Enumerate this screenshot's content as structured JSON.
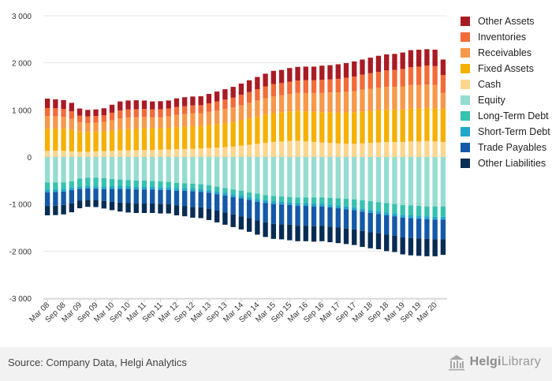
{
  "chart_data": {
    "type": "stacked-bar",
    "ylim": [
      -3000,
      3000
    ],
    "yticks": [
      3000,
      2000,
      1000,
      0,
      -1000,
      -2000,
      -3000
    ],
    "ytick_labels": [
      "3 000",
      "2 000",
      "1 000",
      "0",
      "-1 000",
      "-2 000",
      "-3 000"
    ],
    "x_labels": [
      "Mar 08",
      "Sep 08",
      "Mar 09",
      "Sep 09",
      "Mar 10",
      "Sep 10",
      "Mar 11",
      "Sep 11",
      "Mar 12",
      "Sep 12",
      "Mar 13",
      "Sep 13",
      "Mar 14",
      "Sep 14",
      "Mar 15",
      "Sep 15",
      "Mar 16",
      "Sep 16",
      "Mar 17",
      "Sep 17",
      "Mar 18",
      "Sep 18",
      "Mar 19",
      "Sep 19",
      "Mar 20"
    ],
    "periods": [
      "Mar 08",
      "Jun 08",
      "Sep 08",
      "Dec 08",
      "Mar 09",
      "Jun 09",
      "Sep 09",
      "Dec 09",
      "Mar 10",
      "Jun 10",
      "Sep 10",
      "Dec 10",
      "Mar 11",
      "Jun 11",
      "Sep 11",
      "Dec 11",
      "Mar 12",
      "Jun 12",
      "Sep 12",
      "Dec 12",
      "Mar 13",
      "Jun 13",
      "Sep 13",
      "Dec 13",
      "Mar 14",
      "Jun 14",
      "Sep 14",
      "Dec 14",
      "Mar 15",
      "Jun 15",
      "Sep 15",
      "Dec 15",
      "Mar 16",
      "Jun 16",
      "Sep 16",
      "Dec 16",
      "Mar 17",
      "Jun 17",
      "Sep 17",
      "Dec 17",
      "Mar 18",
      "Jun 18",
      "Sep 18",
      "Dec 18",
      "Mar 19",
      "Jun 19",
      "Sep 19",
      "Dec 19",
      "Mar 20",
      "Jun 20"
    ],
    "asset_series": [
      {
        "name": "Cash",
        "color": "#fdd68e",
        "values": [
          130,
          135,
          130,
          120,
          110,
          110,
          120,
          125,
          130,
          140,
          140,
          145,
          150,
          150,
          155,
          160,
          165,
          170,
          175,
          180,
          190,
          200,
          210,
          220,
          240,
          260,
          280,
          300,
          320,
          330,
          340,
          345,
          330,
          320,
          310,
          300,
          290,
          285,
          280,
          290,
          300,
          310,
          320,
          320,
          320,
          330,
          330,
          340,
          330,
          320
        ]
      },
      {
        "name": "Fixed Assets",
        "color": "#f5b000",
        "values": [
          470,
          470,
          470,
          460,
          430,
          420,
          420,
          420,
          430,
          440,
          450,
          450,
          460,
          460,
          460,
          460,
          470,
          470,
          480,
          480,
          490,
          500,
          510,
          520,
          540,
          560,
          580,
          600,
          610,
          620,
          630,
          640,
          640,
          640,
          640,
          650,
          650,
          660,
          670,
          680,
          680,
          690,
          690,
          690,
          690,
          700,
          700,
          700,
          700,
          700
        ]
      },
      {
        "name": "Receivables",
        "color": "#f7994a",
        "values": [
          270,
          260,
          250,
          230,
          200,
          190,
          190,
          200,
          220,
          240,
          250,
          250,
          240,
          230,
          230,
          240,
          260,
          270,
          270,
          270,
          280,
          290,
          300,
          310,
          320,
          330,
          340,
          350,
          360,
          360,
          370,
          380,
          390,
          400,
          410,
          420,
          430,
          440,
          450,
          460,
          470,
          470,
          480,
          480,
          490,
          500,
          500,
          500,
          500,
          340
        ]
      },
      {
        "name": "Inventories",
        "color": "#f26b38",
        "values": [
          170,
          170,
          170,
          160,
          140,
          140,
          140,
          140,
          160,
          170,
          170,
          170,
          170,
          170,
          170,
          170,
          170,
          170,
          170,
          170,
          180,
          190,
          200,
          210,
          220,
          230,
          240,
          250,
          260,
          260,
          260,
          260,
          270,
          270,
          280,
          280,
          290,
          300,
          310,
          320,
          330,
          340,
          350,
          360,
          370,
          380,
          390,
          400,
          400,
          380
        ]
      },
      {
        "name": "Other Assets",
        "color": "#a91b24",
        "values": [
          200,
          190,
          190,
          180,
          150,
          140,
          140,
          150,
          170,
          190,
          190,
          190,
          180,
          170,
          170,
          170,
          180,
          190,
          190,
          190,
          200,
          210,
          220,
          230,
          240,
          250,
          260,
          270,
          280,
          280,
          290,
          290,
          290,
          290,
          300,
          300,
          310,
          310,
          320,
          320,
          330,
          340,
          340,
          340,
          350,
          360,
          360,
          350,
          350,
          330
        ]
      }
    ],
    "liability_series": [
      {
        "name": "Equity",
        "color": "#96dcd1",
        "values": [
          -540,
          -540,
          -540,
          -520,
          -460,
          -440,
          -440,
          -450,
          -470,
          -480,
          -490,
          -500,
          -500,
          -510,
          -520,
          -530,
          -550,
          -560,
          -570,
          -580,
          -600,
          -630,
          -660,
          -690,
          -720,
          -750,
          -780,
          -810,
          -830,
          -840,
          -850,
          -860,
          -860,
          -860,
          -860,
          -870,
          -880,
          -890,
          -900,
          -920,
          -940,
          -960,
          -980,
          -1000,
          -1020,
          -1030,
          -1040,
          -1050,
          -1050,
          -1050
        ]
      },
      {
        "name": "Long-Term Debt",
        "color": "#37c2b0",
        "values": [
          -150,
          -145,
          -140,
          -130,
          -170,
          -180,
          -185,
          -180,
          -150,
          -140,
          -130,
          -130,
          -130,
          -120,
          -120,
          -110,
          -110,
          -100,
          -100,
          -100,
          -100,
          -100,
          -100,
          -100,
          -100,
          -100,
          -110,
          -110,
          -110,
          -110,
          -110,
          -120,
          -120,
          -130,
          -130,
          -140,
          -150,
          -160,
          -170,
          -180,
          -190,
          -190,
          -200,
          -200,
          -210,
          -210,
          -210,
          -210,
          -220,
          -220
        ]
      },
      {
        "name": "Short-Term Debt",
        "color": "#1fa8c7",
        "values": [
          -60,
          -60,
          -55,
          -55,
          -50,
          -50,
          -50,
          -55,
          -60,
          -60,
          -60,
          -60,
          -60,
          -60,
          -60,
          -60,
          -60,
          -60,
          -60,
          -60,
          -60,
          -60,
          -60,
          -60,
          -60,
          -60,
          -60,
          -60,
          -60,
          -60,
          -60,
          -60,
          -60,
          -60,
          -60,
          -60,
          -60,
          -60,
          -60,
          -60,
          -60,
          -60,
          -60,
          -60,
          -60,
          -60,
          -60,
          -60,
          -60,
          -60
        ]
      },
      {
        "name": "Trade Payables",
        "color": "#1458a8",
        "values": [
          -290,
          -290,
          -285,
          -280,
          -250,
          -240,
          -240,
          -250,
          -270,
          -290,
          -300,
          -300,
          -300,
          -300,
          -300,
          -300,
          -310,
          -320,
          -330,
          -330,
          -340,
          -350,
          -360,
          -370,
          -380,
          -390,
          -400,
          -410,
          -420,
          -420,
          -420,
          -420,
          -420,
          -420,
          -410,
          -410,
          -410,
          -410,
          -410,
          -410,
          -410,
          -410,
          -410,
          -410,
          -420,
          -420,
          -420,
          -420,
          -420,
          -420
        ]
      },
      {
        "name": "Other Liabilities",
        "color": "#082c52",
        "values": [
          -200,
          -200,
          -200,
          -190,
          -160,
          -150,
          -150,
          -160,
          -180,
          -190,
          -200,
          -200,
          -200,
          -200,
          -200,
          -200,
          -210,
          -220,
          -230,
          -230,
          -240,
          -250,
          -260,
          -270,
          -280,
          -290,
          -300,
          -310,
          -320,
          -320,
          -330,
          -330,
          -330,
          -330,
          -330,
          -330,
          -330,
          -330,
          -330,
          -340,
          -340,
          -340,
          -350,
          -350,
          -360,
          -370,
          -370,
          -370,
          -360,
          -330
        ]
      }
    ],
    "legend": [
      {
        "name": "Other Assets",
        "color": "#a91b24"
      },
      {
        "name": "Inventories",
        "color": "#f26b38"
      },
      {
        "name": "Receivables",
        "color": "#f7994a"
      },
      {
        "name": "Fixed Assets",
        "color": "#f5b000"
      },
      {
        "name": "Cash",
        "color": "#fdd68e"
      },
      {
        "name": "Equity",
        "color": "#96dcd1"
      },
      {
        "name": "Long-Term Debt",
        "color": "#37c2b0"
      },
      {
        "name": "Short-Term Debt",
        "color": "#1fa8c7"
      },
      {
        "name": "Trade Payables",
        "color": "#1458a8"
      },
      {
        "name": "Other Liabilities",
        "color": "#082c52"
      }
    ],
    "legend_position": "right",
    "grid": true
  },
  "footer": {
    "source": "Source: Company Data, Helgi Analytics",
    "logo_text_bold": "Helgi",
    "logo_text": "Library"
  }
}
